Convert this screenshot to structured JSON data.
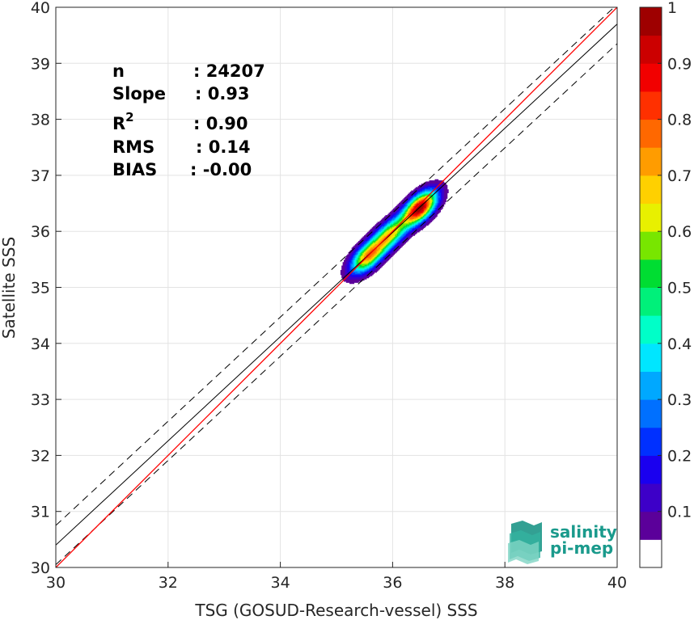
{
  "chart_data": {
    "type": "heatmap",
    "xlabel": "TSG (GOSUD-Research-vessel) SSS",
    "ylabel": "Satellite SSS",
    "xlim": [
      30,
      40
    ],
    "ylim": [
      30,
      40
    ],
    "xticks": [
      "30",
      "32",
      "34",
      "36",
      "38",
      "40"
    ],
    "yticks": [
      "30",
      "31",
      "32",
      "33",
      "34",
      "35",
      "36",
      "37",
      "38",
      "39",
      "40"
    ],
    "grid": true,
    "stats": [
      {
        "label": "n",
        "value": ": 24207"
      },
      {
        "label": "Slope",
        "value": ": 0.93"
      },
      {
        "label": "R",
        "sup": "2",
        "value": ": 0.90"
      },
      {
        "label": "RMS",
        "value": ": 0.14"
      },
      {
        "label": "BIAS",
        "value": ": -0.00"
      }
    ],
    "lines": {
      "identity": {
        "slope": 1.0,
        "intercept": 0.0,
        "color": "#ff0000"
      },
      "regression": {
        "slope": 0.93,
        "intercept": 2.5,
        "color": "#000000"
      },
      "regression_upper": {
        "slope": 0.93,
        "intercept": 2.85,
        "color": "#000000",
        "dashed": true
      },
      "regression_lower": {
        "slope": 0.93,
        "intercept": 2.15,
        "color": "#000000",
        "dashed": true
      }
    },
    "density": {
      "levels": [
        0.05,
        0.1,
        0.15,
        0.2,
        0.25,
        0.3,
        0.35,
        0.4,
        0.45,
        0.5,
        0.55,
        0.6,
        0.65,
        0.7,
        0.75,
        0.8,
        0.85,
        0.9,
        0.95
      ],
      "peaks": [
        {
          "x": 35.55,
          "y": 35.55,
          "amp": 0.72
        },
        {
          "x": 35.95,
          "y": 35.95,
          "amp": 0.62
        },
        {
          "x": 36.48,
          "y": 36.42,
          "amp": 1.0
        }
      ]
    },
    "colorbar": {
      "ticks": [
        "0.1",
        "0.2",
        "0.3",
        "0.4",
        "0.5",
        "0.6",
        "0.7",
        "0.8",
        "0.9",
        "1"
      ],
      "range": [
        0,
        1
      ],
      "colors": [
        "#ffffff",
        "#5b009a",
        "#3d00c8",
        "#1a00ef",
        "#0030ff",
        "#0070ff",
        "#00a8ff",
        "#00e6ff",
        "#00ffc8",
        "#00f07a",
        "#00dd32",
        "#78e600",
        "#e8f000",
        "#ffd000",
        "#ff9c00",
        "#ff6800",
        "#ff3000",
        "#f20000",
        "#cc0000",
        "#9e0000"
      ]
    }
  },
  "logo": {
    "line1": "salinity",
    "line2": "pi-mep",
    "color": "#1a9a8c"
  }
}
